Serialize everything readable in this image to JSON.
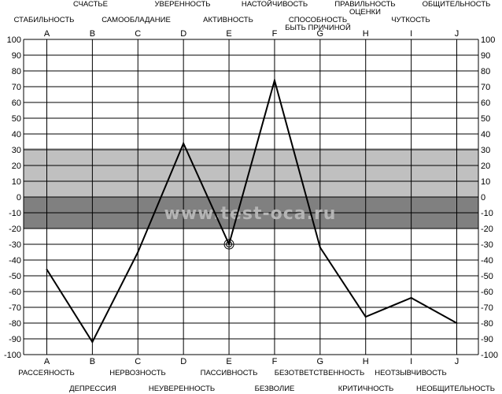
{
  "chart_data": {
    "type": "line",
    "categories": [
      "A",
      "B",
      "C",
      "D",
      "E",
      "F",
      "G",
      "H",
      "I",
      "J"
    ],
    "top_labels": [
      "СТАБИЛЬНОСТЬ",
      "СЧАСТЬЕ",
      "САМООБЛАДАНИЕ",
      "УВЕРЕННОСТЬ",
      "АКТИВНОСТЬ",
      "НАСТОЙЧИВОСТЬ",
      "СПОСОБНОСТЬ\nБЫТЬ ПРИЧИНОЙ",
      "ПРАВИЛЬНОСТЬ\nОЦЕНКИ",
      "ЧУТКОСТЬ",
      "ОБЩИТЕЛЬНОСТЬ"
    ],
    "bottom_labels": [
      "РАССЕЯНОСТЬ",
      "ДЕПРЕССИЯ",
      "НЕРВОЗНОСТЬ",
      "НЕУВЕРЕННОСТЬ",
      "ПАССИВНОСТЬ",
      "БЕЗВОЛИЕ",
      "БЕЗОТВЕТСТВЕННОСТЬ",
      "КРИТИЧНОСТЬ",
      "НЕОТЗЫВЧИВОСТЬ",
      "НЕОБЩИТЕЛЬНОСТЬ"
    ],
    "values": [
      -46,
      -92,
      -35,
      34,
      -30,
      74,
      -32,
      -76,
      -64,
      -80
    ],
    "highlight_index": 4,
    "ylim": [
      -100,
      100
    ],
    "yticks": [
      100,
      90,
      80,
      70,
      60,
      50,
      40,
      30,
      20,
      10,
      0,
      -10,
      -20,
      -30,
      -40,
      -50,
      -60,
      -70,
      -80,
      -90,
      -100
    ],
    "bands": [
      {
        "from": 0,
        "to": 31,
        "color": "#c0c0c0"
      },
      {
        "from": -20,
        "to": 0,
        "color": "#808080"
      }
    ],
    "watermark": "www.test-oca.ru",
    "grid": true
  }
}
